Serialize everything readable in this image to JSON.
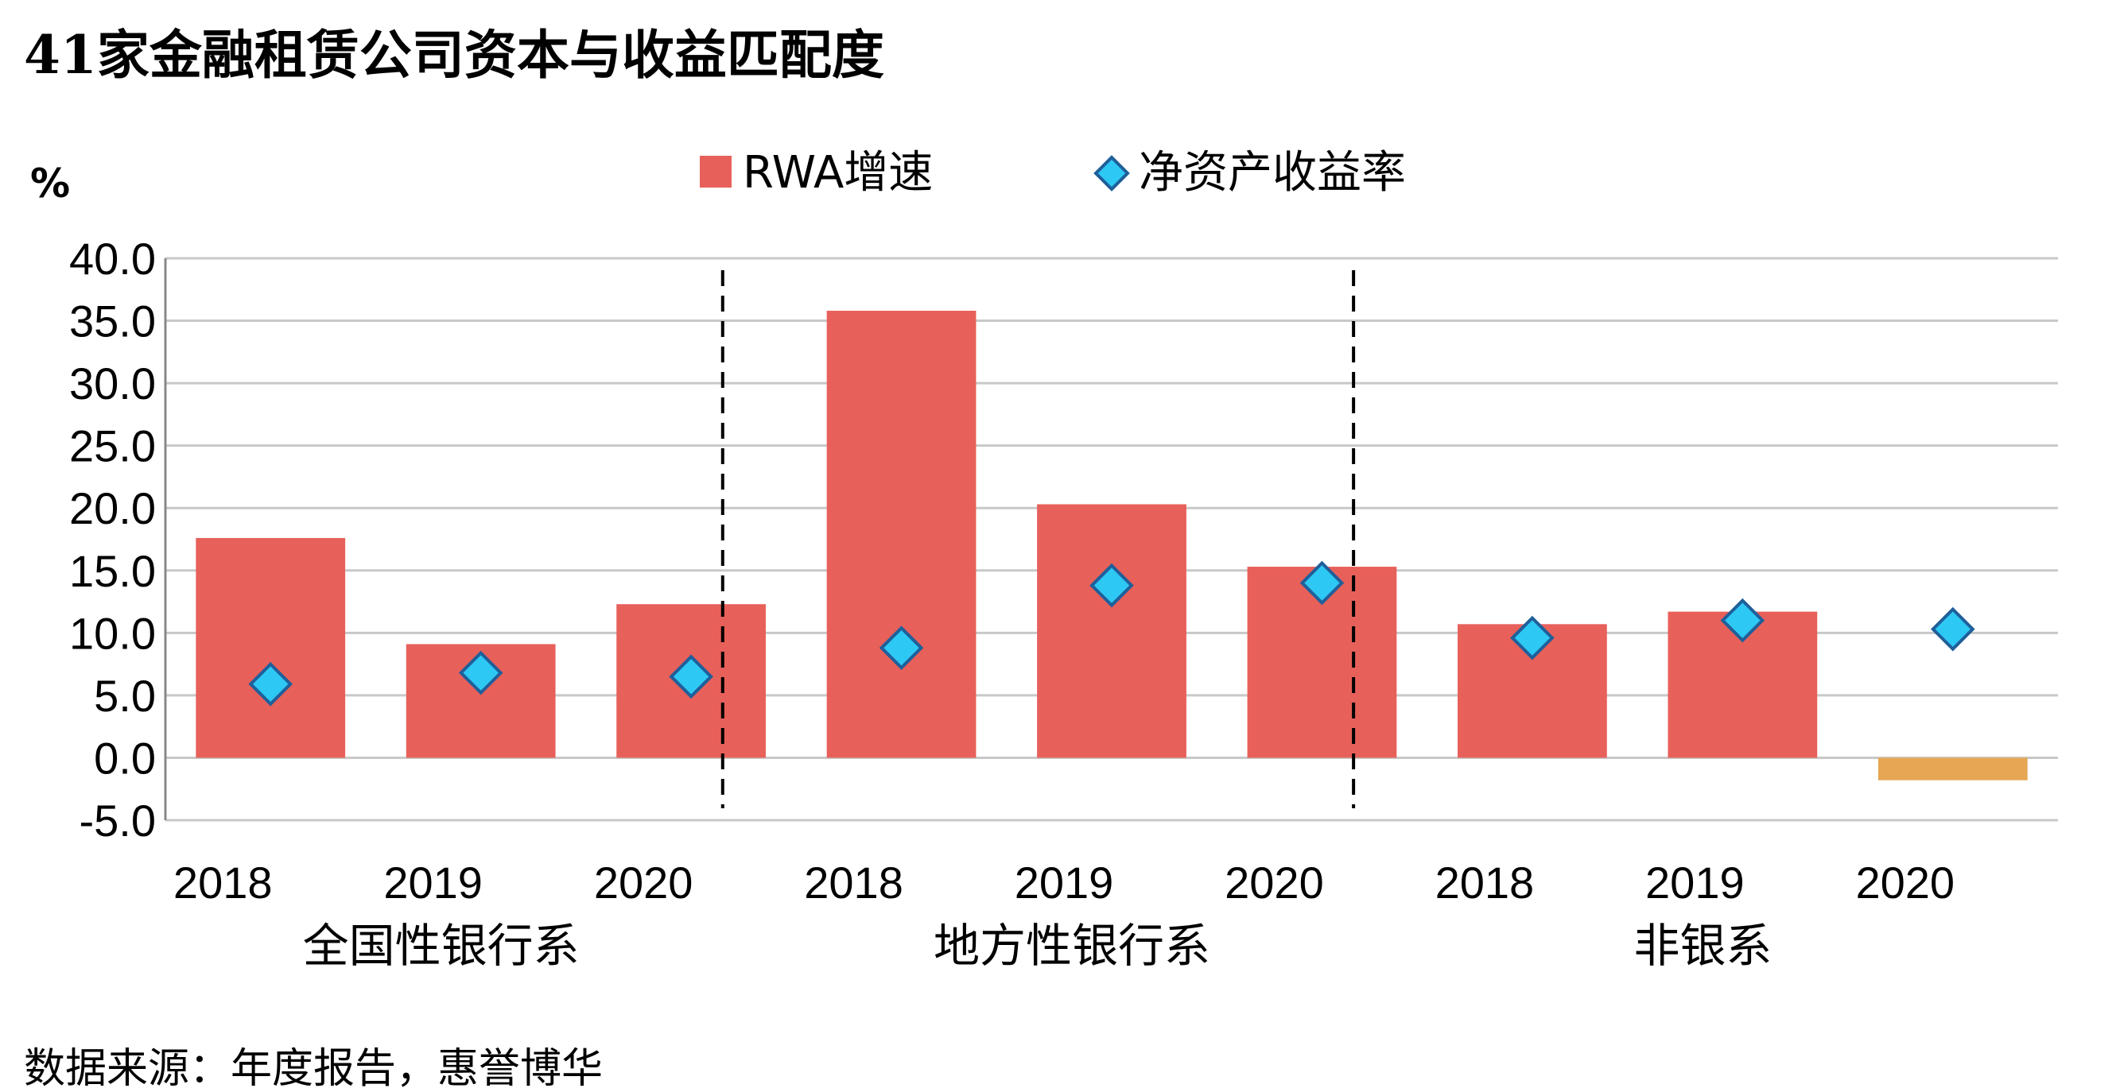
{
  "title": "41家金融租赁公司资本与收益匹配度",
  "source": "数据来源：年度报告，惠誉博华",
  "colors": {
    "bar": "#e8605a",
    "bar_negative": "#e6a654",
    "marker_fill": "#2ec8f4",
    "marker_stroke": "#1f5f9a",
    "grid": "#c8c8c8",
    "axis": "#888888",
    "separator": "#000000"
  },
  "chart_data": {
    "type": "bar",
    "ylabel": "%",
    "ylim": [
      -5,
      40
    ],
    "yticks": [
      "40.0",
      "35.0",
      "30.0",
      "25.0",
      "20.0",
      "15.0",
      "10.0",
      "5.0",
      "0.0",
      "-5.0"
    ],
    "categories": [
      "2018",
      "2019",
      "2020",
      "2018",
      "2019",
      "2020",
      "2018",
      "2019",
      "2020"
    ],
    "groups": [
      "全国性银行系",
      "地方性银行系",
      "非银系"
    ],
    "grid": true,
    "legend_position": "top",
    "series": [
      {
        "name": "RWA增速",
        "kind": "bar",
        "values": [
          17.6,
          9.1,
          12.3,
          35.8,
          20.3,
          15.3,
          10.7,
          11.7,
          -1.8
        ]
      },
      {
        "name": "净资产收益率",
        "kind": "marker",
        "values": [
          5.9,
          6.8,
          6.5,
          8.8,
          13.8,
          14.0,
          9.6,
          11.0,
          10.3
        ]
      }
    ]
  }
}
